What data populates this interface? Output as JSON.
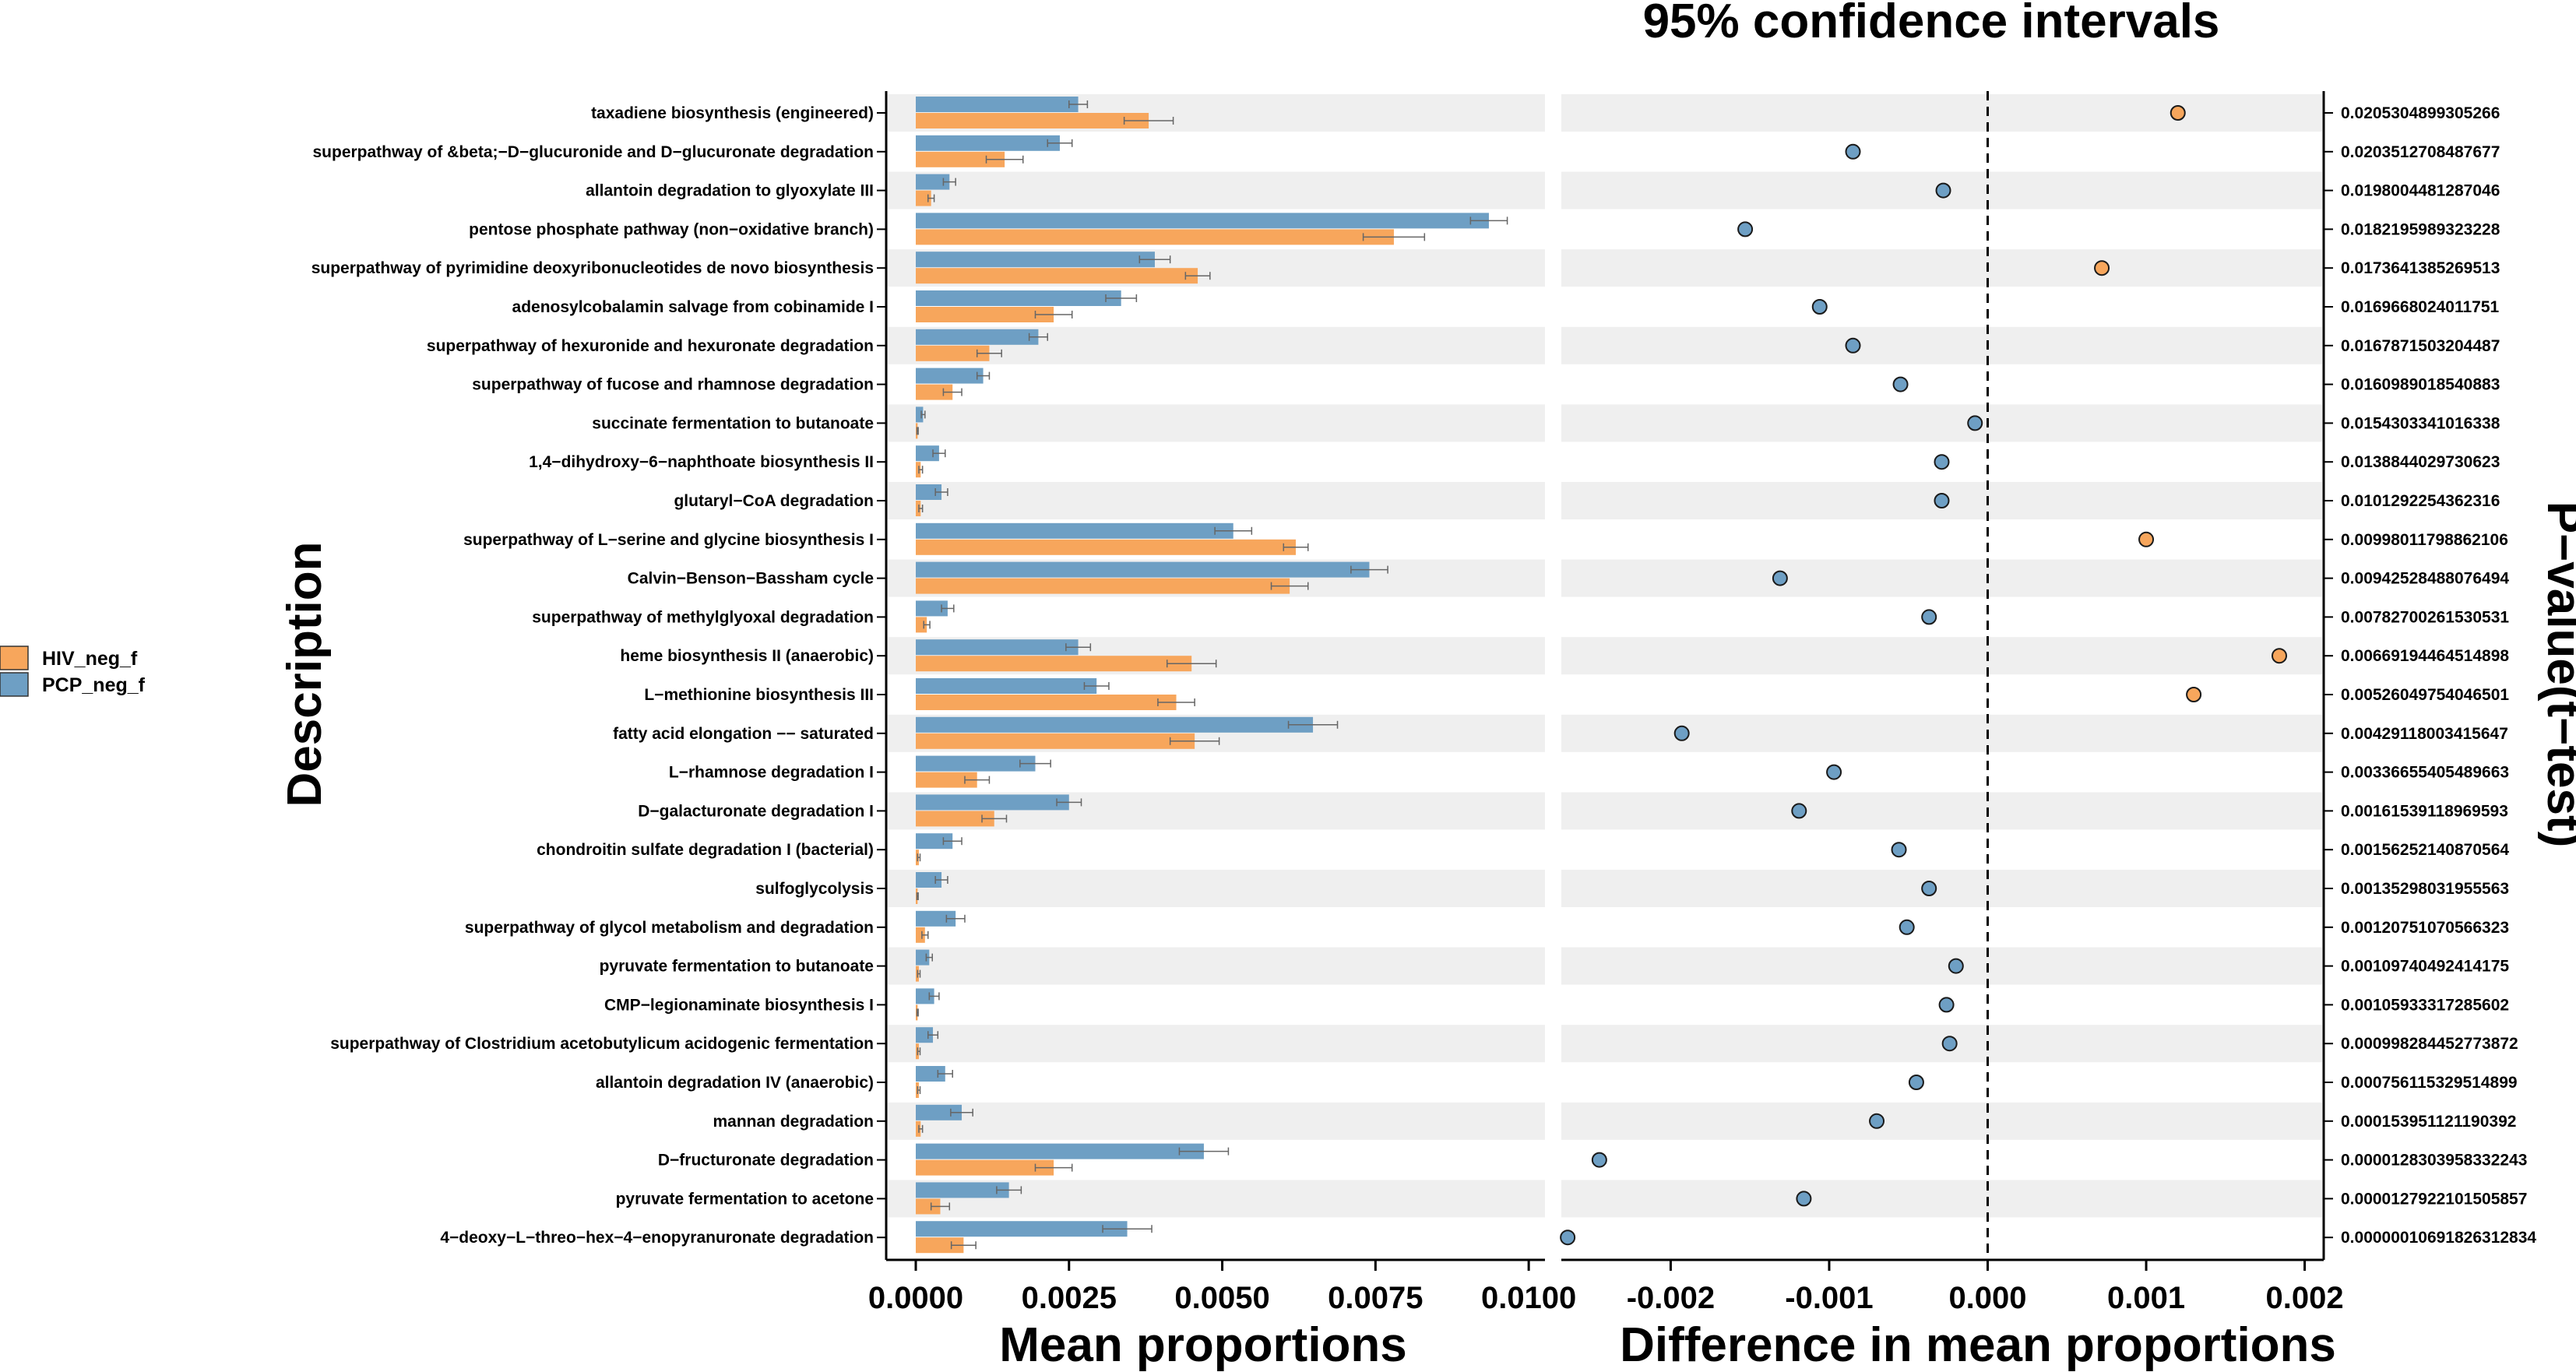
{
  "colors": {
    "hiv": "#f7a65c",
    "pcp": "#6e9fc4",
    "band": "#efefef",
    "errorbar": "#666666"
  },
  "legend": [
    {
      "label": "HIV_neg_f",
      "color": "#f7a65c"
    },
    {
      "label": "PCP_neg_f",
      "color": "#6e9fc4"
    }
  ],
  "chart_data": [
    {
      "type": "bar",
      "orientation": "horizontal",
      "title": "",
      "ylabel": "Description",
      "xlabel": "Mean proportions",
      "xlim": [
        0,
        0.0101
      ],
      "xticks": [
        0.0,
        0.0025,
        0.005,
        0.0075,
        0.01
      ],
      "xtick_labels": [
        "0.0000",
        "0.0025",
        "0.0050",
        "0.0075",
        "0.0100"
      ],
      "categories": [
        "taxadiene biosynthesis (engineered)",
        "superpathway of &beta;−D−glucuronide and D−glucuronate degradation",
        "allantoin degradation to glyoxylate III",
        "pentose phosphate pathway (non−oxidative branch)",
        "superpathway of pyrimidine deoxyribonucleotides de novo biosynthesis",
        "adenosylcobalamin salvage from cobinamide I",
        "superpathway of hexuronide and hexuronate degradation",
        "superpathway of fucose and rhamnose degradation",
        "succinate fermentation to butanoate",
        "1,4−dihydroxy−6−naphthoate biosynthesis II",
        "glutaryl−CoA degradation",
        "superpathway of L−serine and glycine biosynthesis I",
        "Calvin−Benson−Bassham cycle",
        "superpathway of methylglyoxal degradation",
        "heme biosynthesis II (anaerobic)",
        "L−methionine biosynthesis III",
        "fatty acid elongation −− saturated",
        "L−rhamnose degradation I",
        "D−galacturonate degradation I",
        "chondroitin sulfate degradation I (bacterial)",
        "sulfoglycolysis",
        "superpathway of glycol metabolism and degradation",
        "pyruvate fermentation to butanoate",
        "CMP−legionaminate biosynthesis I",
        "superpathway of Clostridium acetobutylicum acidogenic fermentation",
        "allantoin degradation IV (anaerobic)",
        "mannan degradation",
        "D−fructuronate degradation",
        "pyruvate fermentation to acetone",
        "4−deoxy−L−threo−hex−4−enopyranuronate degradation"
      ],
      "series": [
        {
          "name": "PCP_neg_f",
          "values": [
            0.00265,
            0.00235,
            0.00055,
            0.00935,
            0.0039,
            0.00335,
            0.002,
            0.0011,
            0.00012,
            0.00038,
            0.00042,
            0.00518,
            0.0074,
            0.00052,
            0.00265,
            0.00295,
            0.00648,
            0.00195,
            0.0025,
            0.0006,
            0.00042,
            0.00065,
            0.00022,
            0.0003,
            0.00028,
            0.00048,
            0.00075,
            0.0047,
            0.00152,
            0.00345
          ],
          "errors": [
            0.00015,
            0.0002,
            0.0001,
            0.0003,
            0.00025,
            0.00025,
            0.00015,
            0.0001,
            3e-05,
            0.0001,
            0.0001,
            0.0003,
            0.0003,
            0.0001,
            0.0002,
            0.0002,
            0.0004,
            0.00025,
            0.0002,
            0.00015,
            0.0001,
            0.00015,
            5e-05,
            8e-05,
            8e-05,
            0.00012,
            0.00018,
            0.0004,
            0.0002,
            0.0004
          ]
        },
        {
          "name": "HIV_neg_f",
          "values": [
            0.0038,
            0.00145,
            0.00025,
            0.0078,
            0.0046,
            0.00225,
            0.0012,
            0.0006,
            3e-05,
            8e-05,
            8e-05,
            0.0062,
            0.0061,
            0.00018,
            0.0045,
            0.00425,
            0.00455,
            0.001,
            0.00128,
            5e-05,
            3e-05,
            0.00015,
            5e-05,
            3e-05,
            5e-05,
            5e-05,
            8e-05,
            0.00225,
            0.0004,
            0.00078
          ],
          "errors": [
            0.0004,
            0.0003,
            5e-05,
            0.0005,
            0.0002,
            0.0003,
            0.0002,
            0.00015,
            1e-05,
            3e-05,
            3e-05,
            0.0002,
            0.0003,
            5e-05,
            0.0004,
            0.0003,
            0.0004,
            0.0002,
            0.0002,
            2e-05,
            1e-05,
            5e-05,
            2e-05,
            1e-05,
            2e-05,
            2e-05,
            3e-05,
            0.0003,
            0.00015,
            0.0002
          ]
        }
      ]
    },
    {
      "type": "scatter",
      "title": "95% confidence intervals",
      "xlabel": "Difference in mean proportions",
      "ylabel": "P−value(t−test)",
      "xlim": [
        -0.00269,
        0.00212
      ],
      "xticks": [
        -0.002,
        -0.001,
        0.0,
        0.001,
        0.002
      ],
      "xtick_labels": [
        "-0.002",
        "-0.001",
        "0.000",
        "0.001",
        "0.002"
      ],
      "reference_line_x": 0.0,
      "differences": [
        0.0012,
        -0.00085,
        -0.00028,
        -0.00153,
        0.00072,
        -0.00106,
        -0.00085,
        -0.00055,
        -8e-05,
        -0.00029,
        -0.00029,
        0.001,
        -0.00131,
        -0.00037,
        0.00184,
        0.0013,
        -0.00193,
        -0.00097,
        -0.00119,
        -0.00056,
        -0.00037,
        -0.00051,
        -0.0002,
        -0.00026,
        -0.00024,
        -0.00045,
        -0.0007,
        -0.00245,
        -0.00116,
        -0.00265
      ],
      "point_colors": [
        "hiv",
        "pcp",
        "pcp",
        "pcp",
        "hiv",
        "pcp",
        "pcp",
        "pcp",
        "pcp",
        "pcp",
        "pcp",
        "hiv",
        "pcp",
        "pcp",
        "hiv",
        "hiv",
        "pcp",
        "pcp",
        "pcp",
        "pcp",
        "pcp",
        "pcp",
        "pcp",
        "pcp",
        "pcp",
        "pcp",
        "pcp",
        "pcp",
        "pcp",
        "pcp"
      ],
      "p_values": [
        "0.0205304899305266",
        "0.0203512708487677",
        "0.0198004481287046",
        "0.0182195989323228",
        "0.0173641385269513",
        "0.0169668024011751",
        "0.0167871503204487",
        "0.0160989018540883",
        "0.0154303341016338",
        "0.0138844029730623",
        "0.0101292254362316",
        "0.00998011798862106",
        "0.00942528488076494",
        "0.00782700261530531",
        "0.00669194464514898",
        "0.00526049754046501",
        "0.00429118003415647",
        "0.00336655405489663",
        "0.00161539118969593",
        "0.00156252140870564",
        "0.00135298031955563",
        "0.00120751070566323",
        "0.00109740492414175",
        "0.00105933317285602",
        "0.000998284452773872",
        "0.000756115329514899",
        "0.000153951121190392",
        "0.0000128303958332243",
        "0.0000127922101505857",
        "0.00000010691826312834"
      ]
    }
  ]
}
